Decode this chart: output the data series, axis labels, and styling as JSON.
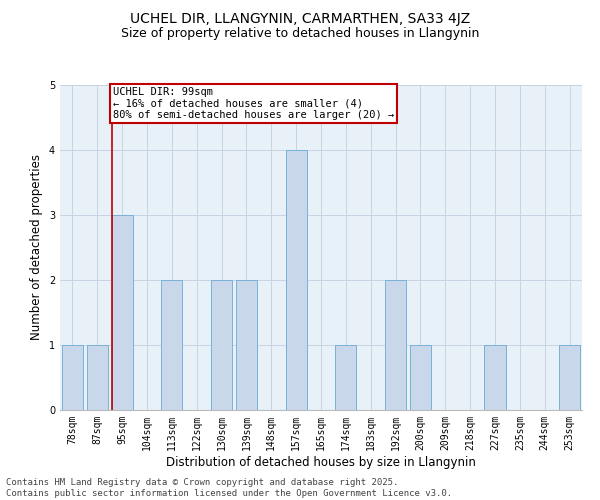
{
  "title": "UCHEL DIR, LLANGYNIN, CARMARTHEN, SA33 4JZ",
  "subtitle": "Size of property relative to detached houses in Llangynin",
  "xlabel": "Distribution of detached houses by size in Llangynin",
  "ylabel": "Number of detached properties",
  "categories": [
    "78sqm",
    "87sqm",
    "95sqm",
    "104sqm",
    "113sqm",
    "122sqm",
    "130sqm",
    "139sqm",
    "148sqm",
    "157sqm",
    "165sqm",
    "174sqm",
    "183sqm",
    "192sqm",
    "200sqm",
    "209sqm",
    "218sqm",
    "227sqm",
    "235sqm",
    "244sqm",
    "253sqm"
  ],
  "values": [
    1,
    1,
    3,
    0,
    2,
    0,
    2,
    2,
    0,
    4,
    0,
    1,
    0,
    2,
    1,
    0,
    0,
    1,
    0,
    0,
    1
  ],
  "bar_color": "#c8d8ea",
  "bar_edge_color": "#6aaad4",
  "highlight_index": 2,
  "highlight_line_color": "#c00000",
  "annotation_text": "UCHEL DIR: 99sqm\n← 16% of detached houses are smaller (4)\n80% of semi-detached houses are larger (20) →",
  "annotation_box_color": "#ffffff",
  "annotation_box_edge": "#c00000",
  "ylim": [
    0,
    5
  ],
  "yticks": [
    0,
    1,
    2,
    3,
    4,
    5
  ],
  "grid_color": "#c8d4e4",
  "background_color": "#e8f0f8",
  "footer": "Contains HM Land Registry data © Crown copyright and database right 2025.\nContains public sector information licensed under the Open Government Licence v3.0.",
  "title_fontsize": 10,
  "subtitle_fontsize": 9,
  "xlabel_fontsize": 8.5,
  "ylabel_fontsize": 8.5,
  "tick_fontsize": 7,
  "footer_fontsize": 6.5,
  "ann_fontsize": 7.5
}
